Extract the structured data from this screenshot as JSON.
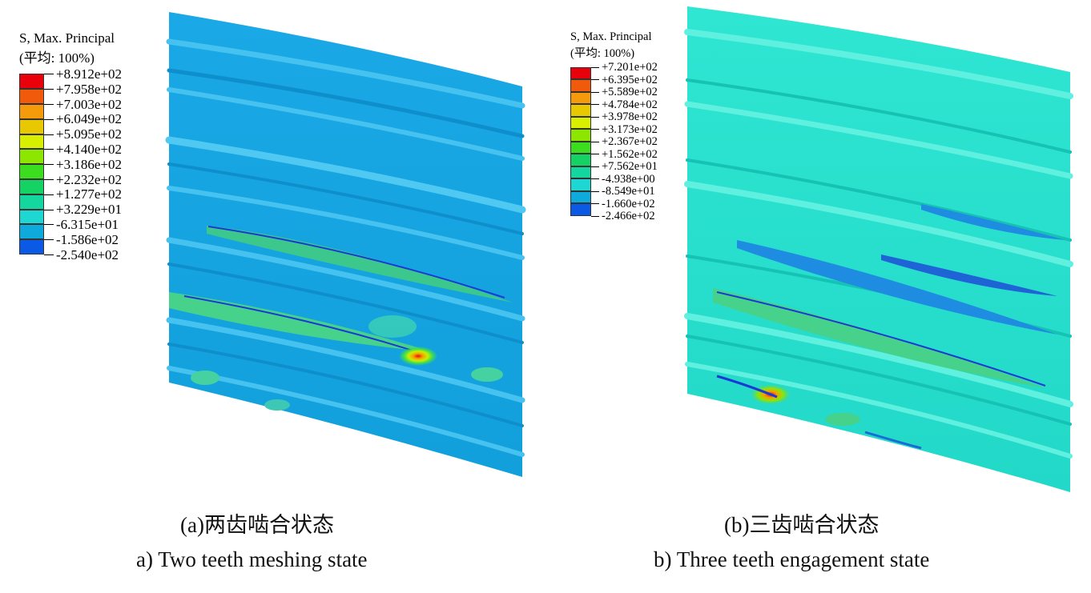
{
  "panels": [
    {
      "legend": {
        "title": "S, Max. Principal",
        "subtitle": "(平均: 100%)",
        "labels": [
          "+8.912e+02",
          "+7.958e+02",
          "+7.003e+02",
          "+6.049e+02",
          "+5.095e+02",
          "+4.140e+02",
          "+3.186e+02",
          "+2.232e+02",
          "+1.277e+02",
          "+3.229e+01",
          "-6.315e+01",
          "-1.586e+02",
          "-2.540e+02"
        ],
        "colors": [
          "#e8000a",
          "#f05a0a",
          "#f59a0a",
          "#e8c800",
          "#d8f000",
          "#8ce600",
          "#3cdc1e",
          "#14d264",
          "#14d7a0",
          "#1ed7d2",
          "#0faadc",
          "#0a5ae6",
          "#0a0adc"
        ]
      },
      "caption_cn": "(a)两齿啮合状态",
      "caption_en": "a) Two teeth meshing state"
    },
    {
      "legend": {
        "title": "S, Max. Principal",
        "subtitle": "(平均: 100%)",
        "labels": [
          "+7.201e+02",
          "+6.395e+02",
          "+5.589e+02",
          "+4.784e+02",
          "+3.978e+02",
          "+3.173e+02",
          "+2.367e+02",
          "+1.562e+02",
          "+7.562e+01",
          "-4.938e+00",
          "-8.549e+01",
          "-1.660e+02",
          "-2.466e+02"
        ],
        "colors": [
          "#e8000a",
          "#f05a0a",
          "#f59a0a",
          "#e8c800",
          "#d8f000",
          "#8ce600",
          "#3cdc1e",
          "#14d264",
          "#14d7a0",
          "#1ed7d2",
          "#0faadc",
          "#0a5ae6",
          "#0a0adc"
        ]
      },
      "caption_cn": "(b)三齿啮合状态",
      "caption_en": "b) Three teeth engagement state"
    }
  ]
}
